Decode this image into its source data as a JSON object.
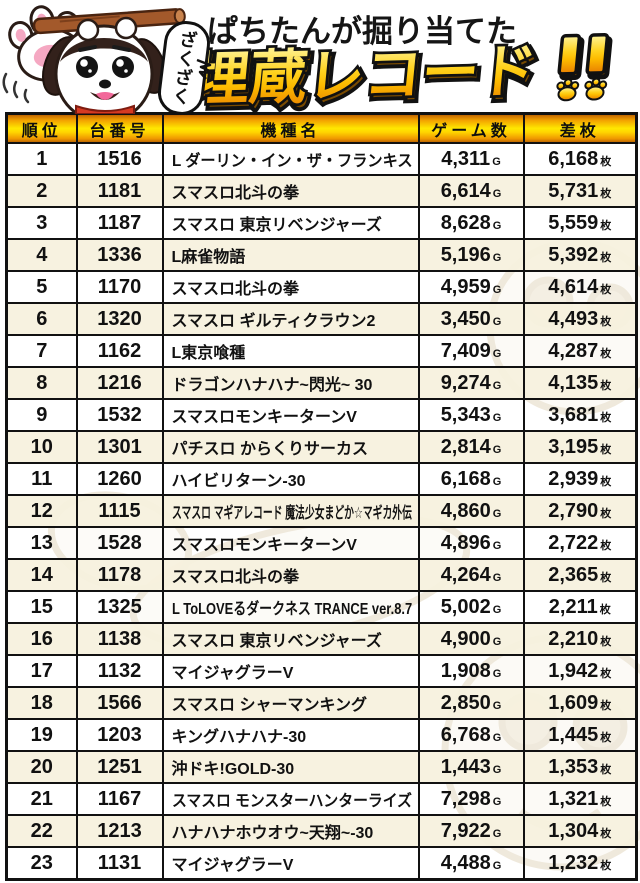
{
  "banner": {
    "speech_bubble": "ざくざく",
    "subtitle": "ぱちたんが掘り当てた",
    "title_main": "埋蔵レコード",
    "title_suffix": "!!",
    "mascot": "pachitan-dog-mascot-with-stick-and-paw",
    "colors": {
      "gold_top": "#fff59d",
      "gold_mid": "#ffc814",
      "gold_bottom": "#ee8800",
      "outline": "#111111",
      "header_gradient_mid": "#ffe800",
      "even_row_bg": "#f6f1de"
    }
  },
  "table": {
    "columns": [
      {
        "key": "rank",
        "label": "順位"
      },
      {
        "key": "unit",
        "label": "台番号"
      },
      {
        "key": "name",
        "label": "機種名"
      },
      {
        "key": "games",
        "label": "ゲーム数"
      },
      {
        "key": "medals",
        "label": "差枚"
      }
    ],
    "units": {
      "games": "G",
      "medals": "枚"
    },
    "rows": [
      {
        "rank": "1",
        "unit": "1516",
        "name": "L ダーリン・イン・ザ・フランキス",
        "games": "4,311",
        "medals": "6,168"
      },
      {
        "rank": "2",
        "unit": "1181",
        "name": "スマスロ北斗の拳",
        "games": "6,614",
        "medals": "5,731"
      },
      {
        "rank": "3",
        "unit": "1187",
        "name": "スマスロ 東京リベンジャーズ",
        "games": "8,628",
        "medals": "5,559"
      },
      {
        "rank": "4",
        "unit": "1336",
        "name": "L麻雀物語",
        "games": "5,196",
        "medals": "5,392"
      },
      {
        "rank": "5",
        "unit": "1170",
        "name": "スマスロ北斗の拳",
        "games": "4,959",
        "medals": "4,614"
      },
      {
        "rank": "6",
        "unit": "1320",
        "name": "スマスロ ギルティクラウン2",
        "games": "3,450",
        "medals": "4,493"
      },
      {
        "rank": "7",
        "unit": "1162",
        "name": "L東京喰種",
        "games": "7,409",
        "medals": "4,287"
      },
      {
        "rank": "8",
        "unit": "1216",
        "name": "ドラゴンハナハナ~閃光~ 30",
        "games": "9,274",
        "medals": "4,135"
      },
      {
        "rank": "9",
        "unit": "1532",
        "name": "スマスロモンキーターンV",
        "games": "5,343",
        "medals": "3,681"
      },
      {
        "rank": "10",
        "unit": "1301",
        "name": "パチスロ からくりサーカス",
        "games": "2,814",
        "medals": "3,195"
      },
      {
        "rank": "11",
        "unit": "1260",
        "name": "ハイビリターン-30",
        "games": "6,168",
        "medals": "2,939"
      },
      {
        "rank": "12",
        "unit": "1115",
        "name": "スマスロ マギアレコード 魔法少女まどか☆マギカ外伝",
        "games": "4,860",
        "medals": "2,790"
      },
      {
        "rank": "13",
        "unit": "1528",
        "name": "スマスロモンキーターンV",
        "games": "4,896",
        "medals": "2,722"
      },
      {
        "rank": "14",
        "unit": "1178",
        "name": "スマスロ北斗の拳",
        "games": "4,264",
        "medals": "2,365"
      },
      {
        "rank": "15",
        "unit": "1325",
        "name": "L ToLOVEるダークネス TRANCE ver.8.7",
        "games": "5,002",
        "medals": "2,211"
      },
      {
        "rank": "16",
        "unit": "1138",
        "name": "スマスロ 東京リベンジャーズ",
        "games": "4,900",
        "medals": "2,210"
      },
      {
        "rank": "17",
        "unit": "1132",
        "name": "マイジャグラーV",
        "games": "1,908",
        "medals": "1,942"
      },
      {
        "rank": "18",
        "unit": "1566",
        "name": "スマスロ シャーマンキング",
        "games": "2,850",
        "medals": "1,609"
      },
      {
        "rank": "19",
        "unit": "1203",
        "name": "キングハナハナ-30",
        "games": "6,768",
        "medals": "1,445"
      },
      {
        "rank": "20",
        "unit": "1251",
        "name": "沖ドキ!GOLD-30",
        "games": "1,443",
        "medals": "1,353"
      },
      {
        "rank": "21",
        "unit": "1167",
        "name": "スマスロ モンスターハンターライズ",
        "games": "7,298",
        "medals": "1,321"
      },
      {
        "rank": "22",
        "unit": "1213",
        "name": "ハナハナホウオウ~天翔~-30",
        "games": "7,922",
        "medals": "1,304"
      },
      {
        "rank": "23",
        "unit": "1131",
        "name": "マイジャグラーV",
        "games": "4,488",
        "medals": "1,232"
      }
    ]
  }
}
